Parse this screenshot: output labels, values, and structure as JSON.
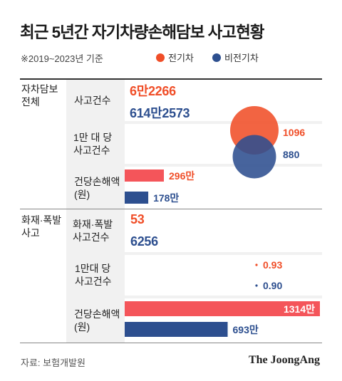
{
  "title": "최근 5년간 자기차량손해담보 사고현황",
  "subtitle": "※2019~2023년 기준",
  "source": "자료: 보험개발원",
  "brand": "The JoongAng",
  "colors": {
    "ev": "#f04e28",
    "non_ev": "#2d4f8f",
    "panel": "#f1f1f1"
  },
  "chart_data": {
    "type": "table",
    "series": [
      {
        "name": "전기차",
        "color": "#f04e28"
      },
      {
        "name": "비전기차",
        "color": "#2d4f8f"
      }
    ],
    "sections": [
      {
        "label": "자차담보\n전체",
        "rows": [
          {
            "label": "사고건수",
            "ev": "6만2266",
            "non_ev": "614만2573"
          },
          {
            "label": "1만 대 당\n사고건수",
            "ev": 1096,
            "non_ev": 880,
            "mark": "bubble"
          },
          {
            "label": "건당손해액\n(원)",
            "ev": 296,
            "non_ev": 178,
            "ev_text": "296만",
            "non_ev_text": "178만",
            "unit": "만원",
            "mark": "bar"
          }
        ]
      },
      {
        "label": "화재·폭발\n사고",
        "rows": [
          {
            "label": "화재·폭발\n사고건수",
            "ev": 53,
            "non_ev": 6256
          },
          {
            "label": "1만대 당\n사고건수",
            "ev": 0.93,
            "non_ev": 0.9,
            "mark": "bubble"
          },
          {
            "label": "건당손해액\n(원)",
            "ev": 1314,
            "non_ev": 693,
            "ev_text": "1314만",
            "non_ev_text": "693만",
            "unit": "만원",
            "mark": "bar"
          }
        ]
      }
    ]
  }
}
